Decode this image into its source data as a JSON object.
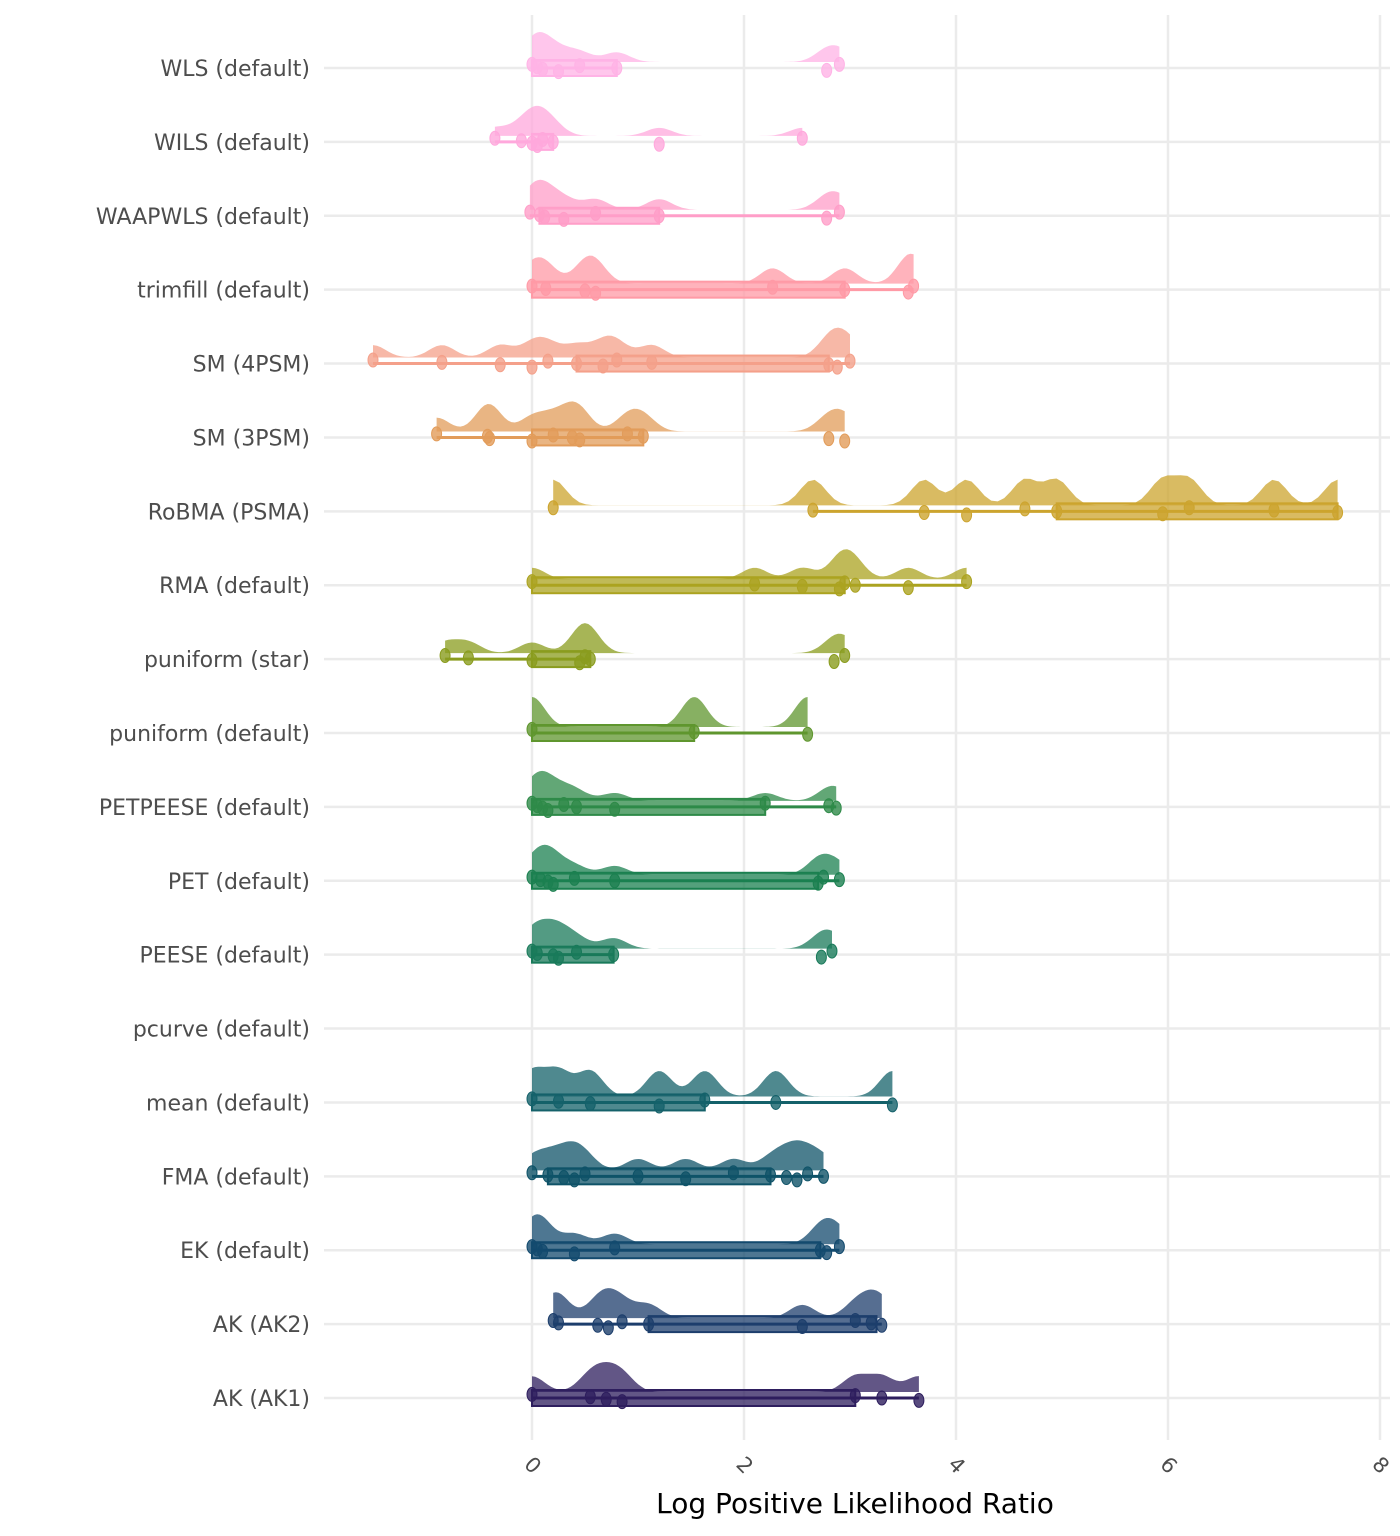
{
  "chart_data": {
    "type": "raincloud",
    "title": "",
    "xlabel": "Log Positive Likelihood Ratio",
    "ylabel": "",
    "xlim": [
      -1.95,
      8.1
    ],
    "x_ticks": [
      0,
      2,
      4,
      6,
      8
    ],
    "x_tick_labels": [
      "0",
      "2",
      "4",
      "6",
      "8"
    ],
    "x_tick_rotation_deg": 45,
    "grid": true,
    "legend": "none",
    "categories": [
      "WLS (default)",
      "WILS (default)",
      "WAAPWLS (default)",
      "trimfill (default)",
      "SM (4PSM)",
      "SM (3PSM)",
      "RoBMA (PSMA)",
      "RMA (default)",
      "puniform (star)",
      "puniform (default)",
      "PETPEESE (default)",
      "PET (default)",
      "PEESE (default)",
      "pcurve (default)",
      "mean (default)",
      "FMA (default)",
      "EK (default)",
      "AK (AK2)",
      "AK (AK1)"
    ],
    "series": [
      {
        "name": "WLS (default)",
        "color": "#ffb3e6",
        "box": [
          0,
          0.8
        ],
        "whisker": [
          0,
          0.8
        ],
        "points": [
          0,
          0.05,
          0.1,
          0.25,
          0.45,
          0.8,
          2.78,
          2.9
        ],
        "density_peak": 0
      },
      {
        "name": "WILS (default)",
        "color": "#ffa8dc",
        "box": [
          0,
          0.2
        ],
        "whisker": [
          -0.35,
          0.2
        ],
        "points": [
          -0.35,
          -0.1,
          0,
          0.05,
          0.1,
          0.2,
          1.2,
          2.55
        ],
        "density_peak": 0.02
      },
      {
        "name": "WAAPWLS (default)",
        "color": "#ff9ec8",
        "box": [
          0.07,
          1.2
        ],
        "whisker": [
          -0.02,
          2.9
        ],
        "points": [
          -0.02,
          0.07,
          0.12,
          0.3,
          0.6,
          1.2,
          2.78,
          2.9
        ],
        "density_peak": 0.05
      },
      {
        "name": "trimfill (default)",
        "color": "#ff9aa6",
        "box": [
          0,
          2.95
        ],
        "whisker": [
          0,
          3.6
        ],
        "points": [
          0,
          0.13,
          0.5,
          0.6,
          2.27,
          2.95,
          3.55,
          3.6
        ],
        "density_peak": 0
      },
      {
        "name": "SM (4PSM)",
        "color": "#f4a08a",
        "box": [
          0.42,
          2.8
        ],
        "whisker": [
          -1.5,
          3.0
        ],
        "points": [
          -1.5,
          -0.85,
          -0.3,
          0,
          0.15,
          0.42,
          0.67,
          0.8,
          1.13,
          2.8,
          2.88,
          3.0
        ],
        "density_peak": 2.98
      },
      {
        "name": "SM (3PSM)",
        "color": "#e29c5a",
        "box": [
          0,
          1.05
        ],
        "whisker": [
          -0.9,
          1.05
        ],
        "points": [
          -0.9,
          -0.42,
          -0.4,
          0,
          0.2,
          0.38,
          0.45,
          0.9,
          1.05,
          2.8,
          2.95
        ],
        "density_peak": 0
      },
      {
        "name": "RoBMA (PSMA)",
        "color": "#cca42e",
        "box": [
          4.95,
          7.6
        ],
        "whisker": [
          2.65,
          7.6
        ],
        "points": [
          0.2,
          2.65,
          3.7,
          4.1,
          4.65,
          4.95,
          5.95,
          6.2,
          7.0,
          7.6
        ],
        "density_peak": 7.6
      },
      {
        "name": "RMA (default)",
        "color": "#aba320",
        "box": [
          0,
          2.95
        ],
        "whisker": [
          0,
          4.1
        ],
        "points": [
          0,
          2.1,
          2.55,
          2.9,
          2.95,
          3.05,
          3.55,
          4.1
        ],
        "density_peak": 0
      },
      {
        "name": "puniform (star)",
        "color": "#8a9c1e",
        "box": [
          0,
          0.55
        ],
        "whisker": [
          -0.82,
          0.55
        ],
        "points": [
          -0.82,
          -0.6,
          0,
          0.45,
          0.5,
          0.55,
          2.85,
          2.95
        ],
        "density_peak": 0
      },
      {
        "name": "puniform (default)",
        "color": "#5f962e",
        "box": [
          0,
          1.53
        ],
        "whisker": [
          0,
          2.6
        ],
        "points": [
          0,
          1.53,
          2.6
        ],
        "density_peak": 0
      },
      {
        "name": "PETPEESE (default)",
        "color": "#2e8a48",
        "box": [
          0,
          2.2
        ],
        "whisker": [
          0,
          2.87
        ],
        "points": [
          0,
          0.05,
          0.1,
          0.15,
          0.3,
          0.42,
          0.78,
          2.2,
          2.8,
          2.87
        ],
        "density_peak": 0
      },
      {
        "name": "PET (default)",
        "color": "#1b8050",
        "box": [
          0,
          2.7
        ],
        "whisker": [
          0,
          2.9
        ],
        "points": [
          0,
          0.08,
          0.15,
          0.2,
          0.4,
          0.78,
          2.7,
          2.75,
          2.9
        ],
        "density_peak": 0
      },
      {
        "name": "PEESE (default)",
        "color": "#197a5a",
        "box": [
          0,
          0.77
        ],
        "whisker": [
          0,
          0.77
        ],
        "points": [
          0,
          0.05,
          0.2,
          0.25,
          0.42,
          0.77,
          2.73,
          2.83
        ],
        "density_peak": 0
      },
      {
        "name": "pcurve (default)",
        "color": "#1a7060",
        "box": null,
        "whisker": null,
        "points": [],
        "density_peak": null
      },
      {
        "name": "mean (default)",
        "color": "#14616a",
        "box": [
          0,
          1.63
        ],
        "whisker": [
          0,
          3.4
        ],
        "points": [
          0,
          0.25,
          0.55,
          1.2,
          1.63,
          2.3,
          3.4
        ],
        "density_peak": 0
      },
      {
        "name": "FMA (default)",
        "color": "#0f5368",
        "box": [
          0.15,
          2.25
        ],
        "whisker": [
          0,
          2.75
        ],
        "points": [
          0,
          0.15,
          0.3,
          0.4,
          0.5,
          1.0,
          1.45,
          1.9,
          2.25,
          2.4,
          2.5,
          2.6,
          2.75
        ],
        "density_peak": 0
      },
      {
        "name": "EK (default)",
        "color": "#134a6e",
        "box": [
          0,
          2.72
        ],
        "whisker": [
          0,
          2.9
        ],
        "points": [
          0,
          0.05,
          0.1,
          0.4,
          0.78,
          2.72,
          2.78,
          2.9
        ],
        "density_peak": 0
      },
      {
        "name": "AK (AK2)",
        "color": "#1d3e6c",
        "box": [
          1.1,
          3.25
        ],
        "whisker": [
          0.2,
          3.3
        ],
        "points": [
          0.2,
          0.25,
          0.62,
          0.72,
          0.85,
          1.1,
          2.55,
          3.05,
          3.2,
          3.3
        ],
        "density_peak": 3.25
      },
      {
        "name": "AK (AK1)",
        "color": "#2e1e5e",
        "box": [
          0,
          3.05
        ],
        "whisker": [
          0,
          3.65
        ],
        "points": [
          0,
          0.55,
          0.7,
          0.85,
          3.05,
          3.3,
          3.65
        ],
        "density_peak": 0
      }
    ]
  }
}
